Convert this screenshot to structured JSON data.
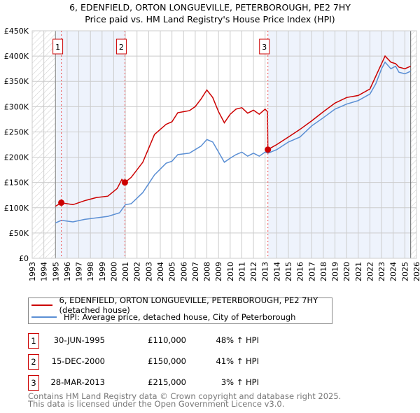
{
  "chart_data": {
    "type": "line",
    "title": "6, EDENFIELD, ORTON LONGUEVILLE, PETERBOROUGH, PE2 7HY",
    "subtitle": "Price paid vs. HM Land Registry's House Price Index (HPI)",
    "xlim": [
      1993,
      2026
    ],
    "ylim": [
      0,
      450000
    ],
    "x_ticks": [
      "1993",
      "1994",
      "1995",
      "1996",
      "1997",
      "1998",
      "1999",
      "2000",
      "2001",
      "2002",
      "2003",
      "2004",
      "2005",
      "2006",
      "2007",
      "2008",
      "2009",
      "2010",
      "2011",
      "2012",
      "2013",
      "2014",
      "2015",
      "2016",
      "2017",
      "2018",
      "2019",
      "2020",
      "2021",
      "2022",
      "2023",
      "2024",
      "2025",
      "2026"
    ],
    "y_ticks": [
      "£0",
      "£50K",
      "£100K",
      "£150K",
      "£200K",
      "£250K",
      "£300K",
      "£350K",
      "£400K",
      "£450K"
    ],
    "grid": true,
    "series": [
      {
        "name": "6, EDENFIELD, ORTON LONGUEVILLE, PETERBOROUGH, PE2 7HY (detached house)",
        "color": "#cc0000",
        "x": [
          1995.0,
          1995.5,
          1996.5,
          1997.5,
          1998.5,
          1999.5,
          2000.3,
          2000.7,
          2000.96,
          2001.5,
          2002.5,
          2003.5,
          2004.5,
          2005.0,
          2005.5,
          2006.5,
          2007.0,
          2007.5,
          2008.0,
          2008.5,
          2009.0,
          2009.5,
          2010.0,
          2010.5,
          2011.0,
          2011.5,
          2012.0,
          2012.5,
          2013.0,
          2013.2,
          2013.24,
          2014,
          2015,
          2016,
          2017,
          2018,
          2019,
          2020,
          2021,
          2022,
          2022.5,
          2023,
          2023.3,
          2023.8,
          2024.2,
          2024.5,
          2025,
          2025.5
        ],
        "y": [
          103,
          110,
          106,
          114,
          120,
          123,
          138,
          156,
          150,
          160,
          190,
          245,
          265,
          270,
          288,
          292,
          300,
          315,
          333,
          318,
          290,
          268,
          285,
          295,
          298,
          287,
          293,
          285,
          295,
          290,
          215,
          225,
          240,
          255,
          272,
          290,
          307,
          318,
          322,
          335,
          360,
          385,
          400,
          388,
          385,
          378,
          375,
          380
        ]
      },
      {
        "name": "HPI: Average price, detached house, City of Peterborough",
        "color": "#5b8fd4",
        "x": [
          1995.0,
          1995.5,
          1996.5,
          1997.5,
          1998.5,
          1999.5,
          2000.5,
          2001.0,
          2001.5,
          2002.5,
          2003.5,
          2004.5,
          2005.0,
          2005.5,
          2006.5,
          2007.0,
          2007.5,
          2008.0,
          2008.5,
          2009.0,
          2009.5,
          2010.0,
          2010.5,
          2011.0,
          2011.5,
          2012.0,
          2012.5,
          2013.0,
          2013.25,
          2014,
          2015,
          2016,
          2017,
          2018,
          2019,
          2020,
          2021,
          2022,
          2022.5,
          2023,
          2023.3,
          2023.8,
          2024.2,
          2024.5,
          2025,
          2025.5
        ],
        "y": [
          70,
          75,
          72,
          77,
          80,
          83,
          90,
          106,
          108,
          130,
          165,
          188,
          192,
          205,
          208,
          215,
          222,
          235,
          230,
          210,
          190,
          198,
          205,
          210,
          202,
          208,
          202,
          210,
          208,
          215,
          230,
          240,
          262,
          278,
          295,
          305,
          312,
          325,
          345,
          375,
          388,
          375,
          380,
          368,
          365,
          370
        ]
      }
    ],
    "y_units": "thousands GBP",
    "sales": [
      {
        "label": "1",
        "date": "30-JUN-1995",
        "price": "£110,000",
        "hpi": "48% ↑ HPI",
        "x": 1995.5,
        "y": 110
      },
      {
        "label": "2",
        "date": "15-DEC-2000",
        "price": "£150,000",
        "hpi": "41% ↑ HPI",
        "x": 2000.96,
        "y": 150
      },
      {
        "label": "3",
        "date": "28-MAR-2013",
        "price": "£215,000",
        "hpi": "3% ↑ HPI",
        "x": 2013.24,
        "y": 215
      }
    ],
    "legend_position": "bottom"
  },
  "footer": {
    "line1": "Contains HM Land Registry data © Crown copyright and database right 2025.",
    "line2": "This data is licensed under the Open Government Licence v3.0."
  }
}
